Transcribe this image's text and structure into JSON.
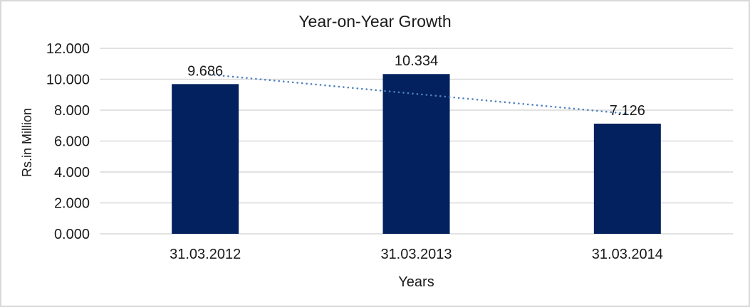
{
  "colors": {
    "bar": "#02215E",
    "trendline": "#4E81BD",
    "gridline": "#D9D9D9",
    "text": "#1A1A1A",
    "frame_border": "#D9D9D9",
    "background": "#FFFFFF"
  },
  "chart_data": {
    "type": "bar",
    "title": "Year-on-Year Growth",
    "xlabel": "Years",
    "ylabel": "Rs.in Million",
    "categories": [
      "31.03.2012",
      "31.03.2013",
      "31.03.2014"
    ],
    "values": [
      9.686,
      10.334,
      7.126
    ],
    "value_labels": [
      "9.686",
      "10.334",
      "7.126"
    ],
    "ylim": [
      0,
      12
    ],
    "ytick_step": 2,
    "yticks": [
      {
        "value": 0,
        "label": "0.000"
      },
      {
        "value": 2,
        "label": "2.000"
      },
      {
        "value": 4,
        "label": "4.000"
      },
      {
        "value": 6,
        "label": "6.000"
      },
      {
        "value": 8,
        "label": "8.000"
      },
      {
        "value": 10,
        "label": "10.000"
      },
      {
        "value": 12,
        "label": "12.000"
      }
    ],
    "grid": true,
    "legend": "none",
    "trendline": {
      "type": "linear",
      "style": "dotted",
      "start_value": 10.33,
      "end_value": 7.77
    }
  }
}
